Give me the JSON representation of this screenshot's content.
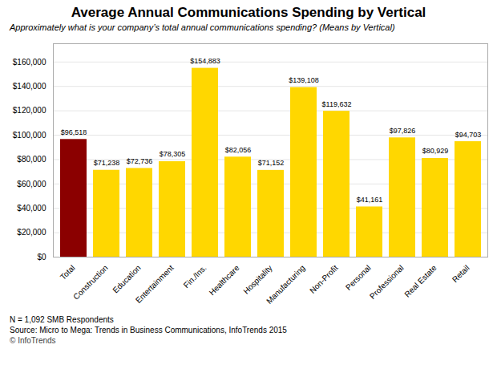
{
  "chart_data": {
    "type": "bar",
    "title": "Average Annual Communications Spending by Vertical",
    "subtitle": "Approximately what is your company’s total annual communications spending? (Means by Vertical)",
    "categories": [
      "Total",
      "Construction",
      "Education",
      "Entertainment",
      "Fin./Ins.",
      "Healthcare",
      "Hospitality",
      "Manufacturing",
      "Non-Profit",
      "Personal",
      "Professional",
      "Real Estate",
      "Retail"
    ],
    "values": [
      96518,
      71238,
      72736,
      78305,
      154883,
      82056,
      71152,
      139108,
      119632,
      41161,
      97826,
      80929,
      94703
    ],
    "value_labels": [
      "$96,518",
      "$71,238",
      "$72,736",
      "$78,305",
      "$154,883",
      "$82,056",
      "$71,152",
      "$139,108",
      "$119,632",
      "$41,161",
      "$97,826",
      "$80,929",
      "$94,703"
    ],
    "colors": [
      "#8B0000",
      "#FFD700",
      "#FFD700",
      "#FFD700",
      "#FFD700",
      "#FFD700",
      "#FFD700",
      "#FFD700",
      "#FFD700",
      "#FFD700",
      "#FFD700",
      "#FFD700",
      "#FFD700"
    ],
    "ylim": [
      0,
      175000
    ],
    "yticks": [
      {
        "value": 0,
        "label": "$0"
      },
      {
        "value": 20000,
        "label": "$20,000"
      },
      {
        "value": 40000,
        "label": "$40,000"
      },
      {
        "value": 60000,
        "label": "$60,000"
      },
      {
        "value": 80000,
        "label": "$80,000"
      },
      {
        "value": 100000,
        "label": "$100,000"
      },
      {
        "value": 120000,
        "label": "$120,000"
      },
      {
        "value": 140000,
        "label": "$140,000"
      },
      {
        "value": 160000,
        "label": "$160,000"
      }
    ],
    "grid": true,
    "data_labels": true,
    "annotations": [
      "N = 1,092 SMB Respondents",
      "Source: Micro to Mega: Trends in Business Communications, InfoTrends 2015",
      "© InfoTrends"
    ]
  }
}
